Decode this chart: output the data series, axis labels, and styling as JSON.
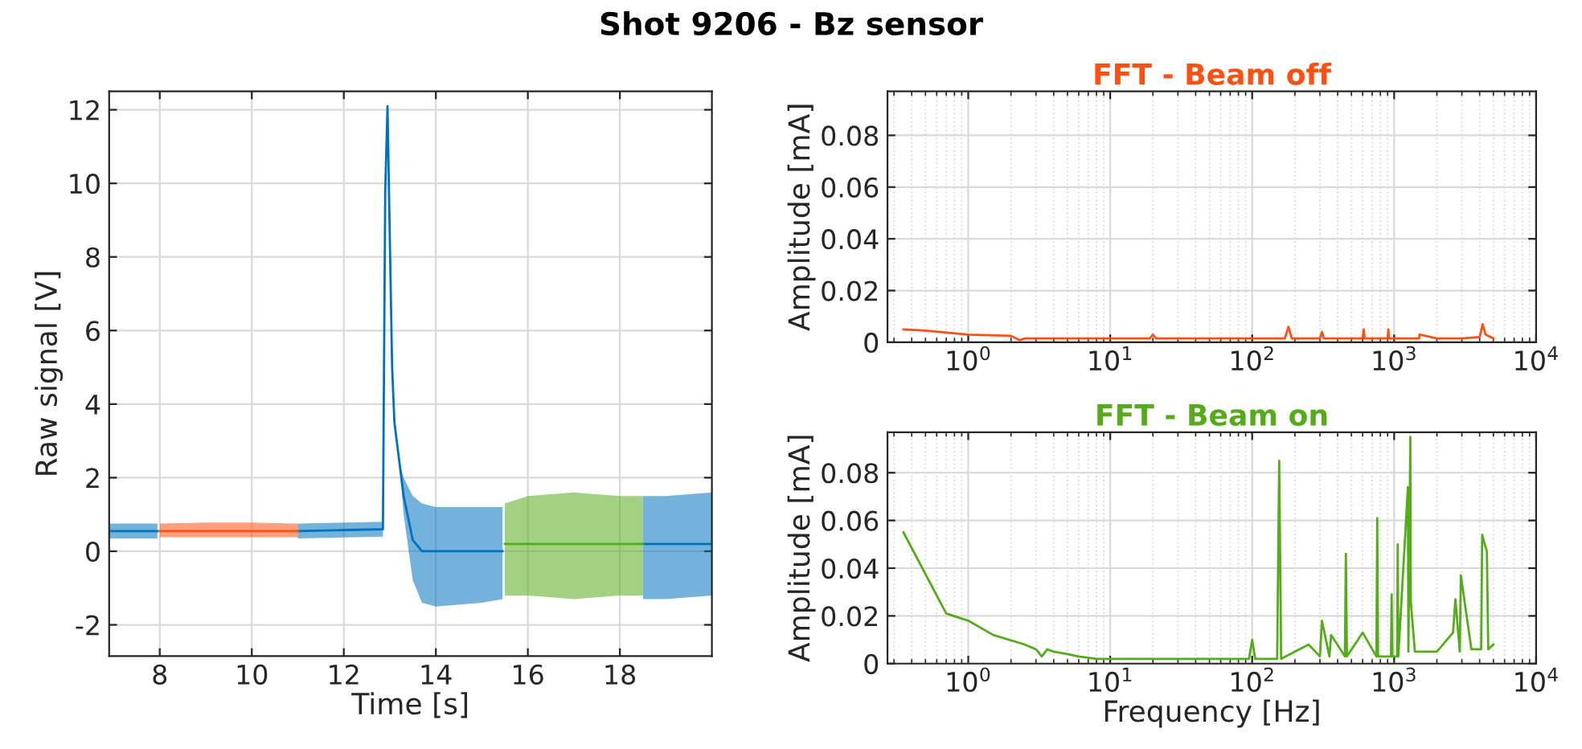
{
  "chart_data": [
    {
      "type": "line",
      "title": "Shot 9206 - Bz sensor",
      "xlabel": "Time [s]",
      "ylabel": "Raw signal [V]",
      "xlim": [
        6.9,
        20
      ],
      "ylim": [
        -2.85,
        12.5
      ],
      "xticks": [
        8,
        10,
        12,
        14,
        16,
        18
      ],
      "yticks": [
        -2,
        0,
        2,
        4,
        6,
        8,
        10,
        12
      ],
      "grid": true,
      "series": [
        {
          "color": "#0072bd",
          "x": [
            6.9,
            7.95,
            8.0,
            10.95,
            11.0,
            12.85,
            12.9,
            12.95,
            13.0,
            13.05,
            13.1,
            13.2,
            13.3,
            13.5,
            13.7,
            14,
            15,
            15.45,
            15.5,
            18.45,
            18.5,
            19,
            20
          ],
          "values": [
            0.55,
            0.55,
            null,
            null,
            0.55,
            0.6,
            9.8,
            12.1,
            8.5,
            5,
            3.5,
            2.5,
            1.5,
            0.3,
            0,
            0,
            0,
            0,
            null,
            null,
            0.2,
            0.2,
            0.2
          ],
          "lower": [
            0.35,
            0.35,
            null,
            null,
            0.35,
            0.4,
            9.8,
            12.1,
            8.5,
            5,
            3.5,
            2.5,
            1.0,
            -0.8,
            -1.4,
            -1.5,
            -1.4,
            -1.3,
            null,
            null,
            -1.3,
            -1.3,
            -1.2
          ],
          "upper": [
            0.75,
            0.75,
            null,
            null,
            0.75,
            0.8,
            9.8,
            12.1,
            8.5,
            5,
            3.5,
            2.5,
            2.0,
            1.5,
            1.3,
            1.2,
            1.2,
            1.2,
            null,
            null,
            1.5,
            1.5,
            1.6
          ]
        },
        {
          "color": "#ff5014",
          "x": [
            8,
            9,
            10,
            11
          ],
          "values": [
            0.55,
            0.55,
            0.55,
            0.55
          ],
          "lower": [
            0.38,
            0.38,
            0.38,
            0.38
          ],
          "upper": [
            0.75,
            0.78,
            0.78,
            0.75
          ]
        },
        {
          "color": "#55ab1a",
          "x": [
            15.5,
            16,
            17,
            18,
            18.5
          ],
          "values": [
            0.2,
            0.2,
            0.2,
            0.2,
            0.2
          ],
          "lower": [
            -1.2,
            -1.2,
            -1.3,
            -1.2,
            -1.2
          ],
          "upper": [
            1.3,
            1.5,
            1.6,
            1.5,
            1.5
          ]
        }
      ]
    },
    {
      "type": "line",
      "title": "FFT - Beam off",
      "ylabel": "Amplitude [mA]",
      "log": "x",
      "xlim": [
        0.27,
        10000
      ],
      "ylim": [
        0,
        0.097
      ],
      "xticks": [
        {
          "value": 1,
          "label": "10$^{0}$"
        },
        {
          "value": 10,
          "label": "10$^{1}$"
        },
        {
          "value": 100,
          "label": "10$^{2}$"
        },
        {
          "value": 1000,
          "label": "10$^{3}$"
        },
        {
          "value": 10000,
          "label": "10$^{4}$"
        }
      ],
      "yticks": [
        0,
        0.02,
        0.04,
        0.06,
        0.08
      ],
      "grid": true,
      "series": [
        {
          "color": "#ff5014",
          "x": [
            0.35,
            0.5,
            1,
            2,
            2.3,
            2.5,
            5,
            10,
            19,
            20,
            21,
            50,
            100,
            170,
            180,
            190,
            300,
            310,
            320,
            500,
            600,
            610,
            620,
            900,
            910,
            920,
            1500,
            1510,
            2000,
            3000,
            4000,
            4200,
            4400,
            5000
          ],
          "values": [
            0.005,
            0.0045,
            0.003,
            0.0025,
            0.0008,
            0.0015,
            0.0015,
            0.0015,
            0.0015,
            0.003,
            0.0015,
            0.0015,
            0.0015,
            0.0015,
            0.006,
            0.0015,
            0.0015,
            0.004,
            0.0015,
            0.0015,
            0.0015,
            0.005,
            0.0015,
            0.0015,
            0.005,
            0.0015,
            0.0015,
            0.003,
            0.0015,
            0.0015,
            0.002,
            0.007,
            0.003,
            0.0015
          ]
        }
      ]
    },
    {
      "type": "line",
      "title": "FFT - Beam on",
      "xlabel": "Frequency [Hz]",
      "ylabel": "Amplitude [mA]",
      "log": "x",
      "xlim": [
        0.27,
        10000
      ],
      "ylim": [
        0,
        0.097
      ],
      "xticks": [
        {
          "value": 1,
          "label": "10$^{0}$"
        },
        {
          "value": 10,
          "label": "10$^{1}$"
        },
        {
          "value": 100,
          "label": "10$^{2}$"
        },
        {
          "value": 1000,
          "label": "10$^{3}$"
        },
        {
          "value": 10000,
          "label": "10$^{4}$"
        }
      ],
      "yticks": [
        0,
        0.02,
        0.04,
        0.06,
        0.08
      ],
      "grid": true,
      "series": [
        {
          "color": "#55ab1a",
          "x": [
            0.35,
            0.7,
            1,
            1.5,
            2.5,
            3,
            3.3,
            3.6,
            4,
            5,
            6,
            8,
            10,
            30,
            95,
            100,
            105,
            150,
            155,
            160,
            250,
            300,
            310,
            350,
            360,
            450,
            457,
            465,
            600,
            750,
            760,
            770,
            950,
            960,
            970,
            1050,
            1060,
            1070,
            1250,
            1260,
            1300,
            1310,
            1400,
            1500,
            2000,
            2600,
            2700,
            2900,
            2950,
            3500,
            4100,
            4170,
            4300,
            4500,
            4600,
            5000
          ],
          "values": [
            0.055,
            0.021,
            0.018,
            0.012,
            0.008,
            0.006,
            0.003,
            0.006,
            0.005,
            0.004,
            0.003,
            0.002,
            0.002,
            0.002,
            0.002,
            0.01,
            0.002,
            0.002,
            0.085,
            0.002,
            0.008,
            0.003,
            0.018,
            0.003,
            0.012,
            0.003,
            0.046,
            0.003,
            0.013,
            0.003,
            0.061,
            0.003,
            0.003,
            0.029,
            0.003,
            0.003,
            0.05,
            0.003,
            0.074,
            0.005,
            0.095,
            0.026,
            0.005,
            0.005,
            0.005,
            0.013,
            0.027,
            0.005,
            0.037,
            0.006,
            0.006,
            0.054,
            0.051,
            0.047,
            0.006,
            0.008
          ]
        }
      ]
    }
  ]
}
